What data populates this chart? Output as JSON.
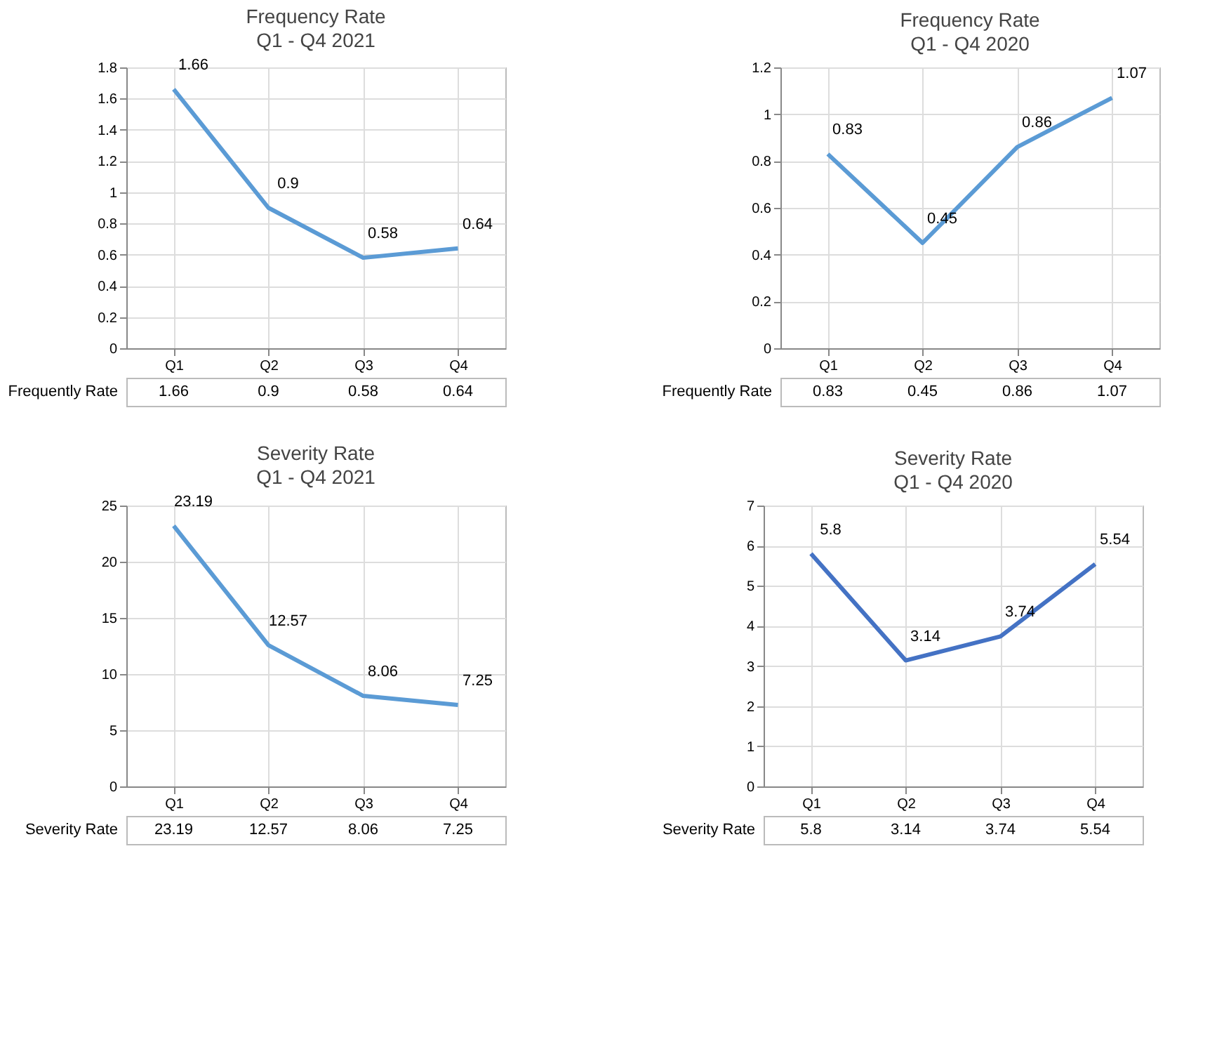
{
  "chart_data": [
    {
      "type": "line",
      "title": "Frequency Rate",
      "subtitle": "Q1 - Q4 2021",
      "categories": [
        "Q1",
        "Q2",
        "Q3",
        "Q4"
      ],
      "series": [
        {
          "name": "Frequently Rate",
          "color": "#5b9bd5",
          "values": [
            1.66,
            0.9,
            0.58,
            0.64
          ],
          "value_labels": [
            "1.66",
            "0.9",
            "0.58",
            "0.64"
          ]
        }
      ],
      "ylim": [
        0,
        1.8
      ],
      "yticks": [
        0,
        0.2,
        0.4,
        0.6,
        0.8,
        1,
        1.2,
        1.4,
        1.6,
        1.8
      ],
      "grid": true,
      "annotations": [
        "1.66",
        "0.9",
        "0.58",
        "0.64"
      ]
    },
    {
      "type": "line",
      "title": "Frequency Rate",
      "subtitle": "Q1 - Q4 2020",
      "categories": [
        "Q1",
        "Q2",
        "Q3",
        "Q4"
      ],
      "series": [
        {
          "name": "Frequently Rate",
          "color": "#5b9bd5",
          "values": [
            0.83,
            0.45,
            0.86,
            1.07
          ],
          "value_labels": [
            "0.83",
            "0.45",
            "0.86",
            "1.07"
          ]
        }
      ],
      "ylim": [
        0,
        1.2
      ],
      "yticks": [
        0,
        0.2,
        0.4,
        0.6,
        0.8,
        1,
        1.2
      ],
      "grid": true,
      "annotations": [
        "0.83",
        "0.45",
        "0.86",
        "1.07"
      ]
    },
    {
      "type": "line",
      "title": "Severity Rate",
      "subtitle": "Q1 - Q4 2021",
      "categories": [
        "Q1",
        "Q2",
        "Q3",
        "Q4"
      ],
      "series": [
        {
          "name": "Severity Rate",
          "color": "#5b9bd5",
          "values": [
            23.19,
            12.57,
            8.06,
            7.25
          ],
          "value_labels": [
            "23.19",
            "12.57",
            "8.06",
            "7.25"
          ]
        }
      ],
      "ylim": [
        0,
        25
      ],
      "yticks": [
        0,
        5,
        10,
        15,
        20,
        25
      ],
      "grid": true,
      "annotations": [
        "23.19",
        "12.57",
        "8.06",
        "7.25"
      ]
    },
    {
      "type": "line",
      "title": "Severity Rate",
      "subtitle": "Q1 - Q4 2020",
      "categories": [
        "Q1",
        "Q2",
        "Q3",
        "Q4"
      ],
      "series": [
        {
          "name": "Severity Rate",
          "color": "#4472c4",
          "values": [
            5.8,
            3.14,
            3.74,
            5.54
          ],
          "value_labels": [
            "5.8",
            "3.14",
            "3.74",
            "5.54"
          ]
        }
      ],
      "ylim": [
        0,
        7
      ],
      "yticks": [
        0,
        1,
        2,
        3,
        4,
        5,
        6,
        7
      ],
      "grid": true,
      "annotations": [
        "5.8",
        "3.14",
        "3.74",
        "5.54"
      ]
    }
  ]
}
